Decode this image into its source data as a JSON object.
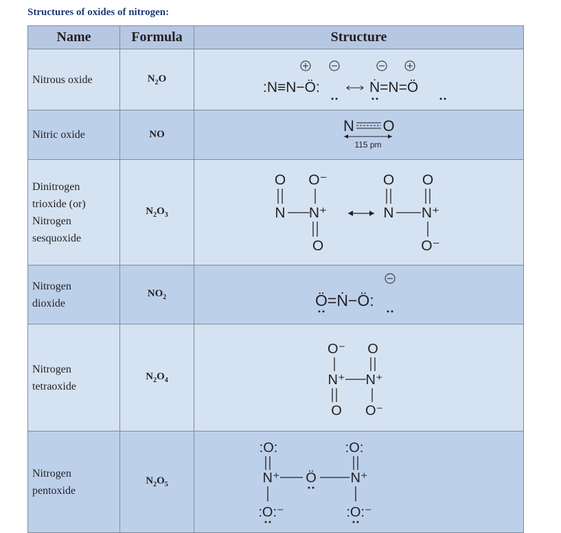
{
  "heading": "Structures of oxides of nitrogen:",
  "columns": {
    "name": "Name",
    "formula": "Formula",
    "structure": "Structure"
  },
  "rows": [
    {
      "name_lines": [
        "Nitrous oxide"
      ],
      "formula": {
        "base1": "N",
        "sub1": "2",
        "base2": "O",
        "sub2": ""
      }
    },
    {
      "name_lines": [
        "Nitric oxide"
      ],
      "formula": {
        "base1": "NO",
        "sub1": "",
        "base2": "",
        "sub2": ""
      }
    },
    {
      "name_lines": [
        "Dinitrogen",
        "trioxide (or)",
        "Nitrogen",
        "sesquoxide"
      ],
      "formula": {
        "base1": "N",
        "sub1": "2",
        "base2": "O",
        "sub2": "3"
      }
    },
    {
      "name_lines": [
        "Nitrogen",
        "dioxide"
      ],
      "formula": {
        "base1": "NO",
        "sub1": "2",
        "base2": "",
        "sub2": ""
      }
    },
    {
      "name_lines": [
        "Nitrogen",
        "tetraoxide"
      ],
      "formula": {
        "base1": "N",
        "sub1": "2",
        "base2": "O",
        "sub2": "4"
      }
    },
    {
      "name_lines": [
        "Nitrogen",
        "pentoxide"
      ],
      "formula": {
        "base1": "N",
        "sub1": "2",
        "base2": "O",
        "sub2": "5"
      }
    }
  ],
  "structures": {
    "nitric_oxide_bond_length": "115 pm"
  }
}
